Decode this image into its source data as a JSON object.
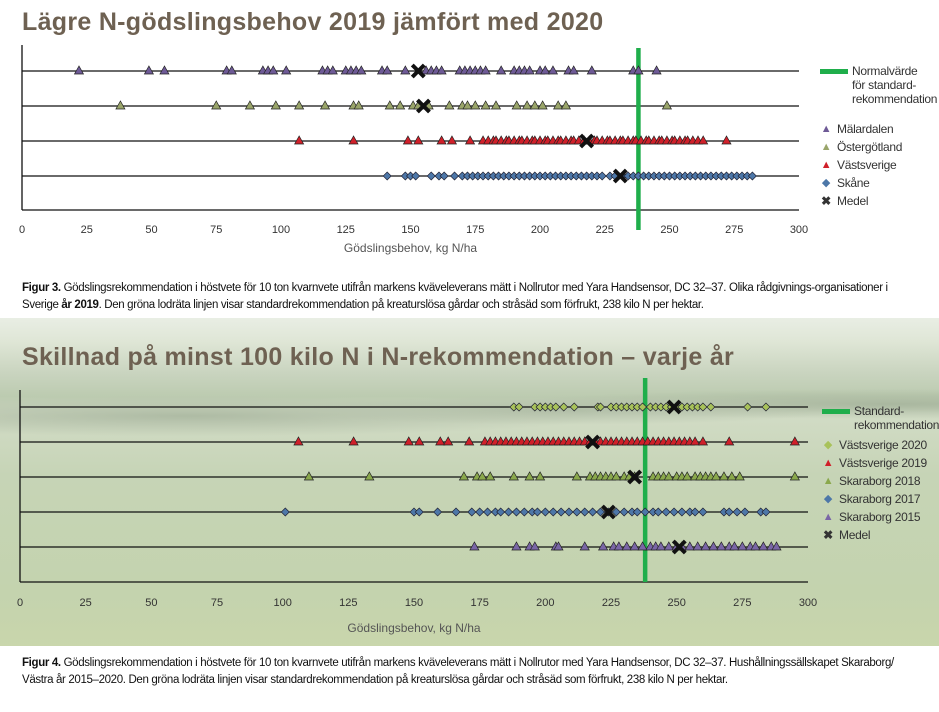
{
  "colors": {
    "standard_line": "#1fae4b",
    "malardalen": "#6e5a96",
    "ostergotland": "#9aa56a",
    "vastsverige": "#d0202a",
    "skane": "#4d77a8",
    "vastsverige2020": "#a8c25a",
    "skaraborg2018": "#8aa84c",
    "skaraborg2017": "#4d77a8",
    "skaraborg2015": "#7a66a6",
    "medel": "#111111"
  },
  "chart_data": [
    {
      "type": "scatter",
      "title": "Lägre N-gödslingsbehov 2019 jämfört med 2020",
      "xlabel": "Gödslingsbehov, kg N/ha",
      "xlim": [
        0,
        300
      ],
      "xticks": [
        "0",
        "25",
        "50",
        "75",
        "100",
        "125",
        "150",
        "175",
        "200",
        "225",
        "250",
        "275",
        "300"
      ],
      "reference_line": {
        "label": "Normalvärde för standard-rekommendation",
        "label_lines": [
          "Normalvärde",
          "för standard-",
          "rekommendation"
        ],
        "value": 238
      },
      "legend_position": "right",
      "medel_label": "Medel",
      "series": [
        {
          "name": "Mälardalen",
          "marker": "triangle",
          "color_key": "malardalen",
          "mean": 153,
          "values": [
            22,
            49,
            55,
            79,
            81,
            93,
            95,
            97,
            102,
            116,
            118,
            120,
            125,
            127,
            129,
            131,
            139,
            141,
            148,
            156,
            158,
            160,
            162,
            169,
            171,
            173,
            175,
            177,
            179,
            185,
            190,
            192,
            194,
            196,
            200,
            202,
            205,
            211,
            213,
            220,
            236,
            238,
            245
          ]
        },
        {
          "name": "Östergötland",
          "marker": "triangle",
          "color_key": "ostergotland",
          "mean": 155,
          "values": [
            38,
            75,
            88,
            98,
            107,
            117,
            128,
            130,
            142,
            146,
            151,
            153,
            157,
            165,
            170,
            172,
            175,
            179,
            183,
            191,
            195,
            198,
            201,
            207,
            210,
            249
          ]
        },
        {
          "name": "Västsverige",
          "marker": "triangle",
          "color_key": "vastsverige",
          "mean": 218,
          "values": [
            107,
            128,
            149,
            153,
            162,
            166,
            173,
            178,
            180,
            182,
            183,
            185,
            187,
            188,
            190,
            192,
            193,
            195,
            197,
            198,
            200,
            202,
            203,
            205,
            207,
            208,
            210,
            212,
            213,
            215,
            217,
            219,
            221,
            222,
            224,
            226,
            227,
            229,
            231,
            232,
            234,
            236,
            237,
            239,
            241,
            242,
            244,
            246,
            247,
            249,
            251,
            252,
            254,
            256,
            257,
            259,
            261,
            263,
            272
          ]
        },
        {
          "name": "Skåne",
          "marker": "diamond",
          "color_key": "skane",
          "mean": 231,
          "values": [
            141,
            148,
            150,
            152,
            158,
            161,
            163,
            167,
            170,
            172,
            174,
            176,
            178,
            180,
            182,
            184,
            186,
            188,
            190,
            192,
            194,
            196,
            198,
            200,
            202,
            204,
            206,
            208,
            210,
            212,
            214,
            216,
            218,
            220,
            222,
            224,
            227,
            229,
            232,
            234,
            236,
            238,
            240,
            242,
            244,
            246,
            248,
            250,
            252,
            254,
            256,
            258,
            260,
            262,
            264,
            266,
            268,
            270,
            272,
            274,
            276,
            278,
            280,
            282
          ]
        }
      ]
    },
    {
      "type": "scatter",
      "title": "Skillnad på minst 100 kilo N i N-rekommendation – varje år",
      "xlabel": "Gödslingsbehov, kg N/ha",
      "xlim": [
        0,
        300
      ],
      "xticks": [
        "0",
        "25",
        "50",
        "75",
        "100",
        "125",
        "150",
        "175",
        "200",
        "225",
        "250",
        "275",
        "300"
      ],
      "reference_line": {
        "label": "Standard-rekommendation",
        "label_lines": [
          "Standard-",
          "rekommendation"
        ],
        "value": 238
      },
      "legend_position": "right",
      "medel_label": "Medel",
      "series": [
        {
          "name": "Västsverige 2020",
          "marker": "diamond",
          "color_key": "vastsverige2020",
          "mean": 249,
          "values": [
            188,
            190,
            196,
            198,
            200,
            202,
            204,
            207,
            211,
            220,
            221,
            225,
            227,
            229,
            231,
            233,
            235,
            237,
            240,
            242,
            244,
            246,
            248,
            250,
            252,
            254,
            256,
            258,
            260,
            263,
            277,
            284
          ]
        },
        {
          "name": "Västsverige 2019",
          "marker": "triangle",
          "color_key": "vastsverige",
          "mean": 218,
          "values": [
            106,
            127,
            148,
            152,
            160,
            163,
            171,
            177,
            179,
            181,
            183,
            185,
            187,
            189,
            191,
            193,
            195,
            197,
            199,
            201,
            203,
            205,
            207,
            209,
            211,
            213,
            215,
            217,
            219,
            221,
            223,
            225,
            227,
            229,
            231,
            233,
            235,
            237,
            239,
            241,
            243,
            245,
            247,
            249,
            251,
            253,
            255,
            257,
            260,
            270,
            295
          ]
        },
        {
          "name": "Skaraborg 2018",
          "marker": "triangle",
          "color_key": "skaraborg2018",
          "mean": 234,
          "values": [
            110,
            133,
            169,
            174,
            176,
            179,
            188,
            194,
            198,
            212,
            217,
            219,
            221,
            223,
            225,
            227,
            230,
            232,
            234,
            241,
            243,
            245,
            247,
            250,
            252,
            254,
            257,
            259,
            261,
            263,
            265,
            268,
            271,
            274,
            295
          ]
        },
        {
          "name": "Skaraborg 2017",
          "marker": "diamond",
          "color_key": "skaraborg2017",
          "mean": 224,
          "values": [
            101,
            150,
            152,
            159,
            166,
            172,
            175,
            178,
            181,
            183,
            186,
            189,
            192,
            195,
            197,
            200,
            203,
            206,
            209,
            212,
            215,
            218,
            221,
            224,
            227,
            230,
            233,
            235,
            238,
            241,
            243,
            246,
            249,
            252,
            255,
            257,
            260,
            268,
            270,
            273,
            276,
            282,
            284
          ]
        },
        {
          "name": "Skaraborg 2015",
          "marker": "triangle",
          "color_key": "skaraborg2015",
          "mean": 251,
          "values": [
            173,
            189,
            194,
            196,
            204,
            205,
            215,
            222,
            226,
            228,
            231,
            234,
            237,
            240,
            242,
            244,
            247,
            250,
            252,
            255,
            258,
            261,
            264,
            267,
            270,
            272,
            275,
            278,
            280,
            283,
            286,
            288
          ]
        }
      ]
    }
  ],
  "captions": {
    "fig3_label": "Figur 3.",
    "fig3_text1": " Gödslingsrekommendation i höstvete för 10 ton kvarnvete utifrån markens kväveleverans mätt i Nollrutor med Yara Handsensor,  DC 32–37. Olika rådgivnings-organisationer i Sverige ",
    "fig3_bold": "år 2019",
    "fig3_text2": ". Den gröna lodräta linjen visar standardrekommendation på kreaturslösa gårdar och stråsäd som förfrukt,  238 kilo N per hektar.",
    "fig4_label": "Figur 4.",
    "fig4_text": " Gödslingsrekommendation i höstvete för 10 ton kvarnvete utifrån markens kväveleverans mätt i Nollrutor med Yara Handsensor, DC 32–37. Hushållningssällskapet Skaraborg/ Västra år 2015–2020. Den gröna lodräta linjen visar standardrekommendation på kreaturslösa gårdar och stråsäd som förfrukt, 238 kilo N per hektar."
  }
}
